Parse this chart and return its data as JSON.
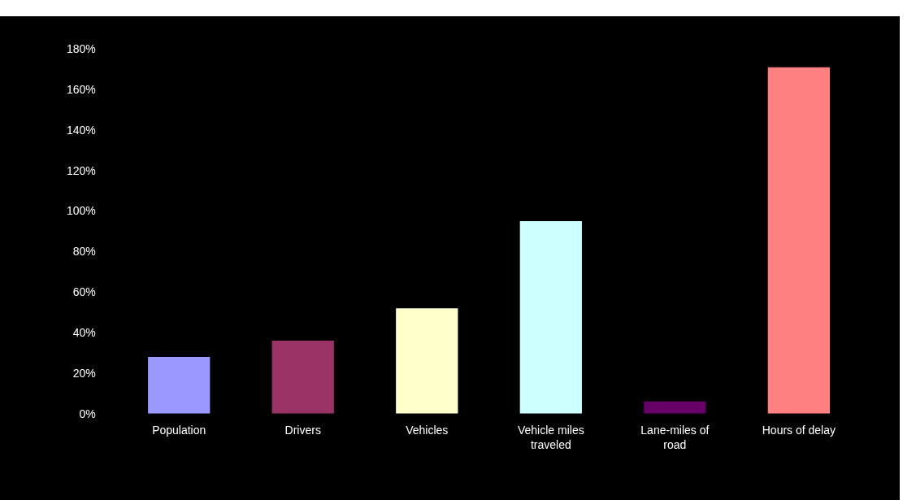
{
  "chart_data": {
    "type": "bar",
    "categories": [
      "Population",
      "Drivers",
      "Vehicles",
      "Vehicle miles traveled",
      "Lane-miles of road",
      "Hours of delay"
    ],
    "values": [
      28,
      36,
      52,
      95,
      6,
      171
    ],
    "colors": [
      "#9999ff",
      "#993366",
      "#ffffcc",
      "#ccffff",
      "#660066",
      "#ff8080"
    ],
    "ylim": [
      0,
      180
    ],
    "yticks": [
      {
        "value": 0,
        "label": "0%"
      },
      {
        "value": 20,
        "label": "20%"
      },
      {
        "value": 40,
        "label": "40%"
      },
      {
        "value": 60,
        "label": "60%"
      },
      {
        "value": 80,
        "label": "80%"
      },
      {
        "value": 100,
        "label": "100%"
      },
      {
        "value": 120,
        "label": "120%"
      },
      {
        "value": 140,
        "label": "140%"
      },
      {
        "value": 160,
        "label": "160%"
      },
      {
        "value": 180,
        "label": "180%"
      }
    ],
    "grid": false
  }
}
